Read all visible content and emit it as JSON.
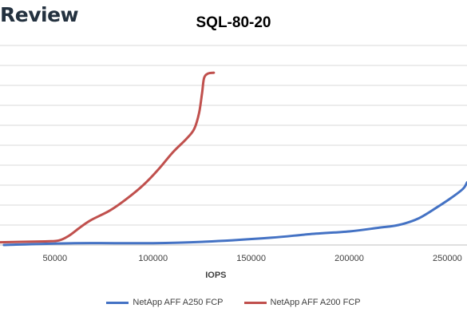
{
  "header": {
    "brand": "Review"
  },
  "chart_data": {
    "type": "line",
    "title": "SQL-80-20",
    "xlabel": "IOPS",
    "ylabel": "",
    "xlim": [
      22000,
      260000
    ],
    "ylim": [
      0,
      11
    ],
    "xticks": [
      50000,
      100000,
      150000,
      200000,
      250000
    ],
    "ytick_labels": "hidden",
    "grid": "horizontal",
    "legend": "bottom",
    "series": [
      {
        "name": "NetApp AFF A250 FCP",
        "color": "#4472c4",
        "points": [
          [
            24000,
            0.0
          ],
          [
            60000,
            0.1
          ],
          [
            100000,
            0.1
          ],
          [
            130000,
            0.2
          ],
          [
            160000,
            0.4
          ],
          [
            180000,
            0.6
          ],
          [
            200000,
            0.75
          ],
          [
            215000,
            0.95
          ],
          [
            225000,
            1.1
          ],
          [
            235000,
            1.45
          ],
          [
            245000,
            2.1
          ],
          [
            252000,
            2.6
          ],
          [
            258000,
            3.1
          ],
          [
            260000,
            3.45
          ]
        ]
      },
      {
        "name": "NetApp AFF A200 FCP",
        "color": "#c0504d",
        "points": [
          [
            22000,
            0.15
          ],
          [
            45000,
            0.2
          ],
          [
            52000,
            0.25
          ],
          [
            57000,
            0.5
          ],
          [
            62000,
            0.9
          ],
          [
            68000,
            1.35
          ],
          [
            78000,
            1.9
          ],
          [
            86000,
            2.5
          ],
          [
            95000,
            3.3
          ],
          [
            103000,
            4.2
          ],
          [
            110000,
            5.1
          ],
          [
            117000,
            5.85
          ],
          [
            121000,
            6.4
          ],
          [
            123500,
            7.3
          ],
          [
            125000,
            8.4
          ],
          [
            126000,
            9.2
          ],
          [
            128000,
            9.45
          ],
          [
            131000,
            9.5
          ]
        ]
      }
    ]
  }
}
